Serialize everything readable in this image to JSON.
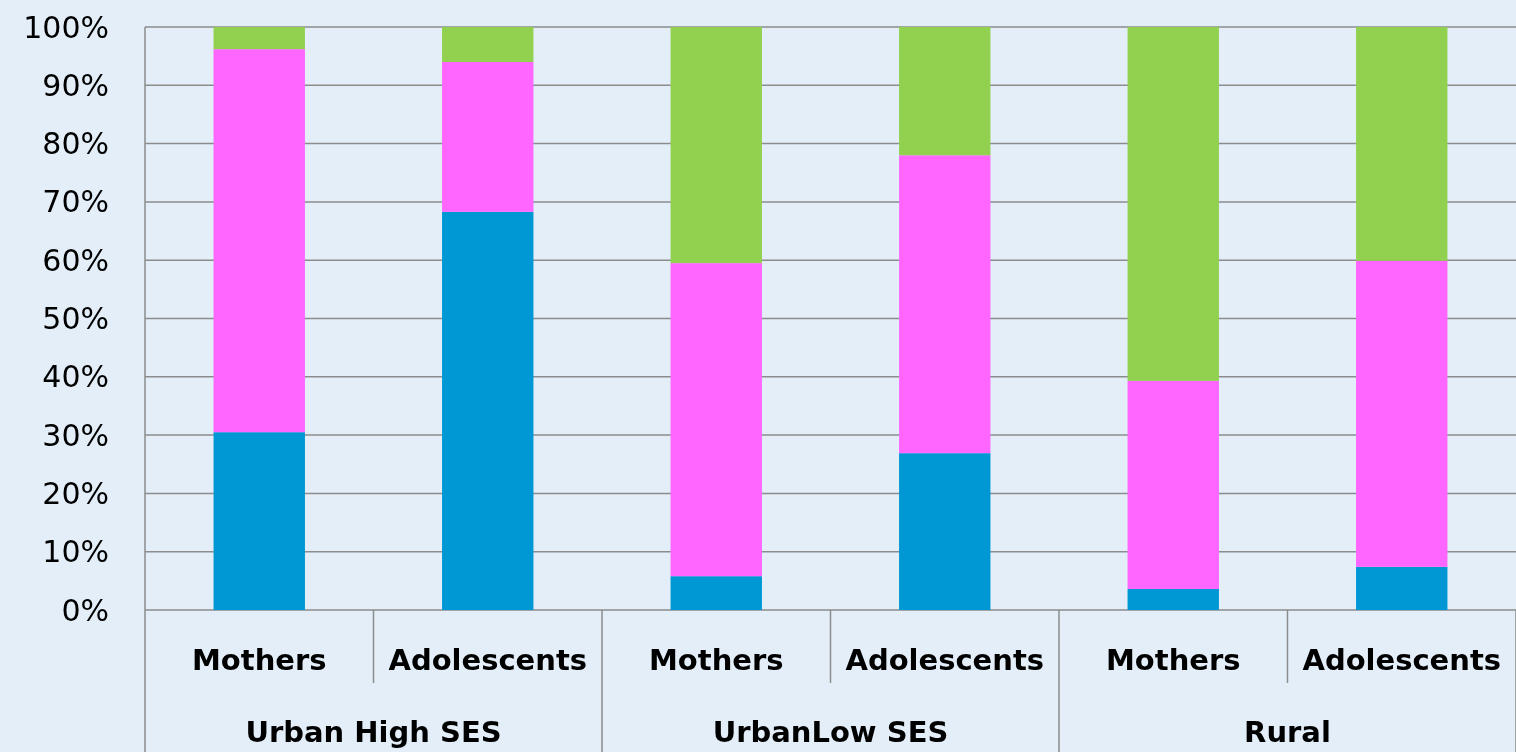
{
  "chart_data": {
    "type": "bar",
    "stacked": true,
    "categories": [
      "Mothers",
      "Adolescents",
      "Mothers",
      "Adolescents",
      "Mothers",
      "Adolescents"
    ],
    "series": [
      {
        "color": "#0098d4",
        "values": [
          30.5,
          68.3,
          5.8,
          26.9,
          3.6,
          7.4
        ]
      },
      {
        "color": "#ff66ff",
        "values": [
          65.7,
          25.7,
          53.7,
          51.1,
          35.7,
          52.5
        ]
      },
      {
        "color": "#92d050",
        "values": [
          3.8,
          6.0,
          40.5,
          22.0,
          60.7,
          40.1
        ]
      }
    ],
    "ylim": [
      0,
      100
    ],
    "yticks": [
      {
        "value": 0,
        "label": "0%"
      },
      {
        "value": 10,
        "label": "10%"
      },
      {
        "value": 20,
        "label": "20%"
      },
      {
        "value": 30,
        "label": "30%"
      },
      {
        "value": 40,
        "label": "40%"
      },
      {
        "value": 50,
        "label": "50%"
      },
      {
        "value": 60,
        "label": "60%"
      },
      {
        "value": 70,
        "label": "70%"
      },
      {
        "value": 80,
        "label": "80%"
      },
      {
        "value": 90,
        "label": "90%"
      },
      {
        "value": 100,
        "label": "100%"
      }
    ],
    "grid": "y",
    "annotations": [
      "Urban High SES",
      "UrbanLow SES",
      "Rural"
    ]
  }
}
